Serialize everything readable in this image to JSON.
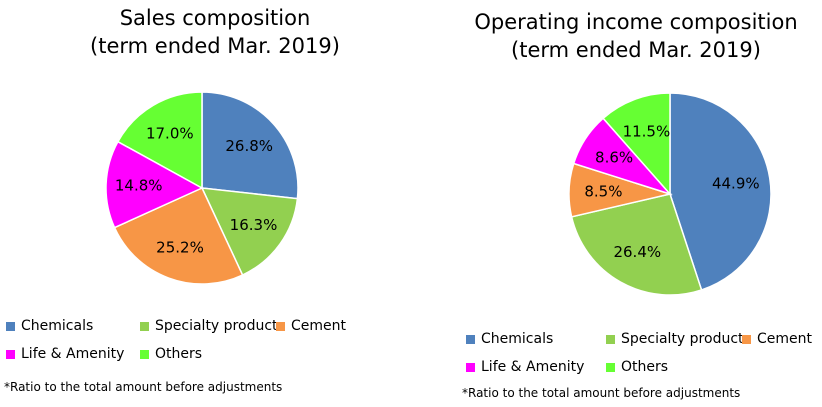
{
  "chart_data": [
    {
      "type": "pie",
      "title": "Sales composition",
      "subtitle": "(term ended Mar. 2019)",
      "slices": [
        {
          "label": "Chemicals",
          "value": 26.8,
          "display": "26.8%",
          "color": "#4f81bd"
        },
        {
          "label": "Specialty products",
          "value": 16.3,
          "display": "16.3%",
          "color": "#92d050"
        },
        {
          "label": "Cement",
          "value": 25.2,
          "display": "25.2%",
          "color": "#f79646"
        },
        {
          "label": "Life & Amenity",
          "value": 14.8,
          "display": "14.8%",
          "color": "#ff00ff"
        },
        {
          "label": "Others",
          "value": 17.0,
          "display": "17.0%",
          "color": "#66ff33"
        }
      ],
      "legend_position": "bottom",
      "note": "*Ratio to the total amount before adjustments"
    },
    {
      "type": "pie",
      "title": "Operating income composition",
      "subtitle": "(term ended Mar. 2019)",
      "slices": [
        {
          "label": "Chemicals",
          "value": 44.9,
          "display": "44.9%",
          "color": "#4f81bd"
        },
        {
          "label": "Specialty products",
          "value": 26.4,
          "display": "26.4%",
          "color": "#92d050"
        },
        {
          "label": "Cement",
          "value": 8.5,
          "display": "8.5%",
          "color": "#f79646"
        },
        {
          "label": "Life & Amenity",
          "value": 8.6,
          "display": "8.6%",
          "color": "#ff00ff"
        },
        {
          "label": "Others",
          "value": 11.5,
          "display": "11.5%",
          "color": "#66ff33"
        }
      ],
      "legend_position": "bottom",
      "note": "*Ratio to the total amount before adjustments"
    }
  ]
}
